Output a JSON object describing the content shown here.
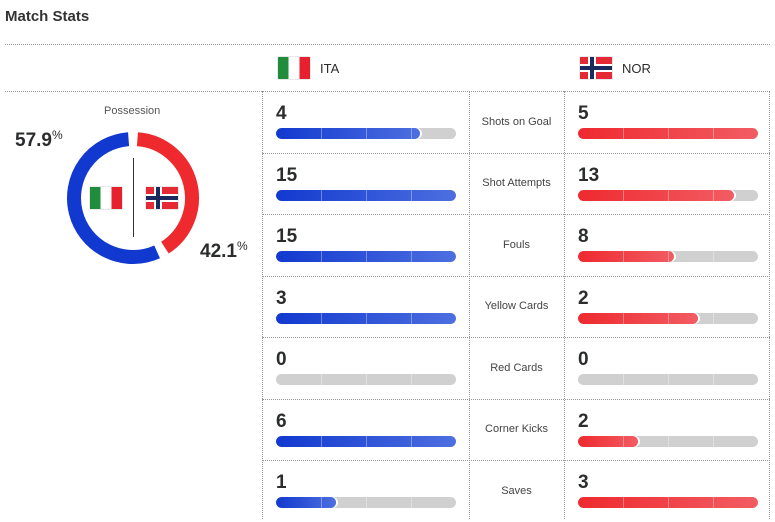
{
  "title": "Match Stats",
  "teams": {
    "home": {
      "abbr": "ITA",
      "color": "#1239cf"
    },
    "away": {
      "abbr": "NOR",
      "color": "#ee2a2f"
    }
  },
  "possession": {
    "label": "Possession",
    "home": "57.9",
    "away": "42.1",
    "unit": "%",
    "home_value": 57.9,
    "away_value": 42.1
  },
  "stats": [
    {
      "label": "Shots on Goal",
      "home": "4",
      "away": "5"
    },
    {
      "label": "Shot Attempts",
      "home": "15",
      "away": "13"
    },
    {
      "label": "Fouls",
      "home": "15",
      "away": "8"
    },
    {
      "label": "Yellow Cards",
      "home": "3",
      "away": "2"
    },
    {
      "label": "Red Cards",
      "home": "0",
      "away": "0"
    },
    {
      "label": "Corner Kicks",
      "home": "6",
      "away": "2"
    },
    {
      "label": "Saves",
      "home": "1",
      "away": "3"
    }
  ]
}
